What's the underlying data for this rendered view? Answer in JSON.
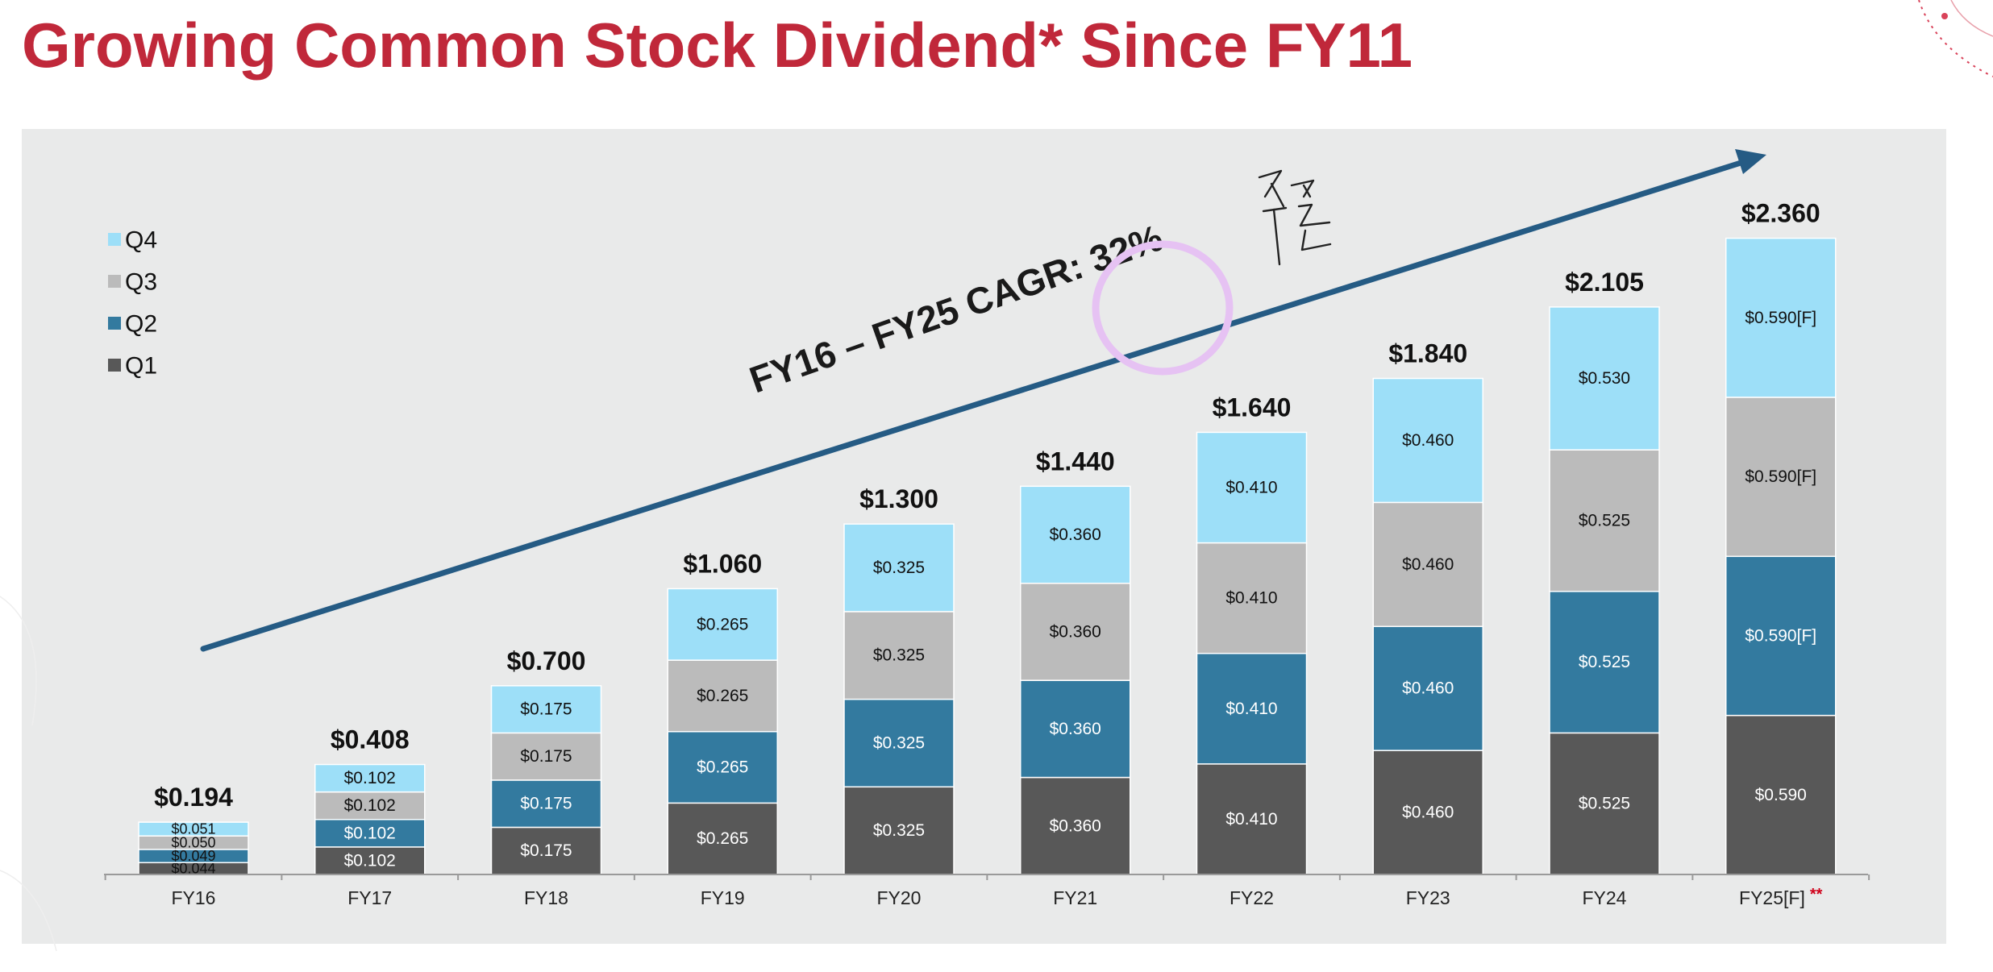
{
  "slide_title": "Growing Common Stock Dividend* Since FY11",
  "colors": {
    "title": "#c0283a",
    "q1": "#585858",
    "q2": "#337a9f",
    "q3": "#bbbbbb",
    "q4": "#9ddff8",
    "arrow": "#255b84",
    "annotation_circle": "#e6c2f3",
    "forecast_mark": "#d0021b"
  },
  "chart_data": {
    "type": "bar",
    "stacked": true,
    "title": "",
    "xlabel": "",
    "ylabel": "",
    "ylim": [
      0,
      2.6
    ],
    "grid": false,
    "legend_position": "top-left",
    "categories": [
      "FY16",
      "FY17",
      "FY18",
      "FY19",
      "FY20",
      "FY21",
      "FY22",
      "FY23",
      "FY24",
      "FY25[F]"
    ],
    "category_marks": [
      "",
      "",
      "",
      "",
      "",
      "",
      "",
      "",
      "",
      "**"
    ],
    "legend_order": [
      "Q4",
      "Q3",
      "Q2",
      "Q1"
    ],
    "series": [
      {
        "name": "Q1",
        "values": [
          0.044,
          0.102,
          0.175,
          0.265,
          0.325,
          0.36,
          0.41,
          0.46,
          0.525,
          0.59
        ],
        "labels": [
          "$0.044",
          "$0.102",
          "$0.175",
          "$0.265",
          "$0.325",
          "$0.360",
          "$0.410",
          "$0.460",
          "$0.525",
          "$0.590"
        ]
      },
      {
        "name": "Q2",
        "values": [
          0.049,
          0.102,
          0.175,
          0.265,
          0.325,
          0.36,
          0.41,
          0.46,
          0.525,
          0.59
        ],
        "labels": [
          "$0.049",
          "$0.102",
          "$0.175",
          "$0.265",
          "$0.325",
          "$0.360",
          "$0.410",
          "$0.460",
          "$0.525",
          "$0.590[F]"
        ]
      },
      {
        "name": "Q3",
        "values": [
          0.05,
          0.102,
          0.175,
          0.265,
          0.325,
          0.36,
          0.41,
          0.46,
          0.525,
          0.59
        ],
        "labels": [
          "$0.050",
          "$0.102",
          "$0.175",
          "$0.265",
          "$0.325",
          "$0.360",
          "$0.410",
          "$0.460",
          "$0.525",
          "$0.590[F]"
        ]
      },
      {
        "name": "Q4",
        "values": [
          0.051,
          0.102,
          0.175,
          0.265,
          0.325,
          0.36,
          0.41,
          0.46,
          0.53,
          0.59
        ],
        "labels": [
          "$0.051",
          "$0.102",
          "$0.175",
          "$0.265",
          "$0.325",
          "$0.360",
          "$0.410",
          "$0.460",
          "$0.530",
          "$0.590[F]"
        ]
      }
    ],
    "totals": [
      0.194,
      0.408,
      0.7,
      1.06,
      1.3,
      1.44,
      1.64,
      1.84,
      2.105,
      2.36
    ],
    "total_labels": [
      "$0.194",
      "$0.408",
      "$0.700",
      "$1.060",
      "$1.300",
      "$1.440",
      "$1.640",
      "$1.840",
      "$2.105",
      "$2.360"
    ],
    "annotation": "FY16 – FY25 CAGR: 32%"
  }
}
